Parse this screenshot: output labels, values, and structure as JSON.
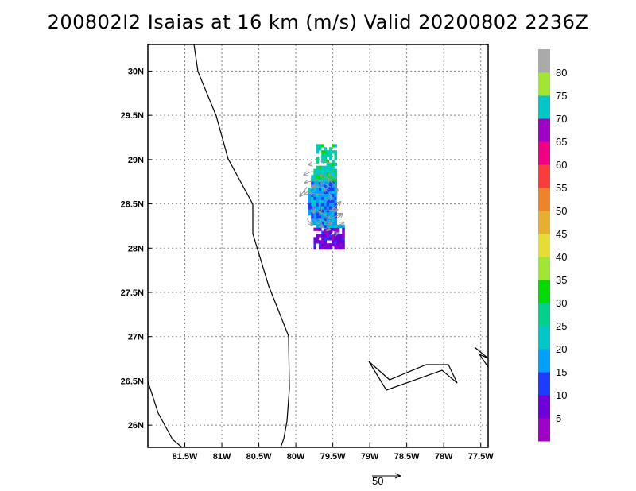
{
  "title": "200802I2 Isaias at 16 km (m/s) Valid 20200802 2236Z",
  "map": {
    "lon_range": [
      -82.0,
      -77.4
    ],
    "lat_range": [
      25.75,
      30.3
    ],
    "lon_ticks": [
      "81.5W",
      "81W",
      "80.5W",
      "80W",
      "79.5W",
      "79W",
      "78.5W",
      "78W",
      "77.5W"
    ],
    "lat_ticks": [
      "26N",
      "26.5N",
      "27N",
      "27.5N",
      "28N",
      "28.5N",
      "29N",
      "29.5N",
      "30N"
    ],
    "grid": "dotted"
  },
  "colorbar": {
    "labels": [
      "5",
      "10",
      "15",
      "20",
      "25",
      "30",
      "35",
      "40",
      "45",
      "50",
      "55",
      "60",
      "65",
      "70",
      "75",
      "80"
    ],
    "colors": [
      "#a000c8",
      "#6e00dc",
      "#1e3cff",
      "#00a0ff",
      "#00c8c8",
      "#00d28c",
      "#00dc00",
      "#a0e632",
      "#e6dc32",
      "#e6af2d",
      "#f08228",
      "#fa3c3c",
      "#f00082",
      "#a000c8",
      "#00c8c8",
      "#a0e632",
      "#aaaaaa"
    ]
  },
  "reference_vector": {
    "label": "50"
  },
  "chart_data": {
    "type": "heatmap",
    "variable": "wind speed (m/s) with wind vectors",
    "level": "16 km",
    "storm": "Isaias",
    "valid": "20200802 2236Z",
    "observed_region": {
      "lon": [
        -79.9,
        -79.35
      ],
      "lat": [
        27.95,
        29.25
      ]
    },
    "approx_max_wind": 30
  }
}
